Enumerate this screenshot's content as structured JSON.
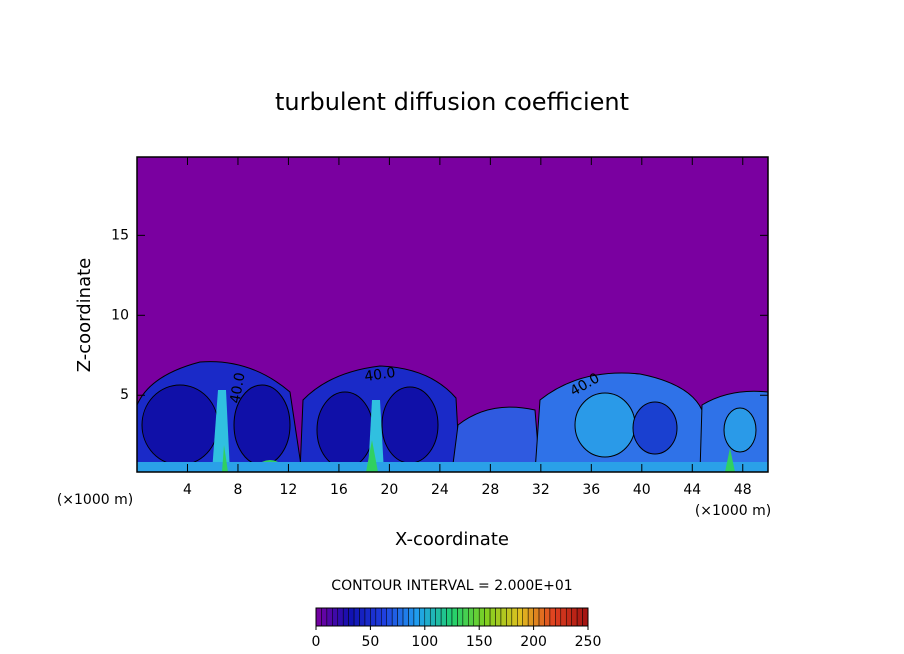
{
  "chart_data": {
    "type": "contour",
    "title": "turbulent diffusion coefficient",
    "x_label": "X-coordinate",
    "y_label": "Z-coordinate",
    "x_unit_labels": [
      "(×1000 m)",
      "(×1000 m)"
    ],
    "xlim": [
      0,
      50
    ],
    "ylim": [
      0.2,
      19.9
    ],
    "xticks": [
      4,
      8,
      12,
      16,
      20,
      24,
      28,
      32,
      36,
      40,
      44,
      48
    ],
    "yticks": [
      5,
      10,
      15
    ],
    "contour_labels": [
      "40.0",
      "40.0",
      "40.0"
    ],
    "contour_interval_text": "CONTOUR INTERVAL = 2.000E+01",
    "colorbar_lim": [
      0,
      250
    ],
    "colorbar_ticks": [
      0,
      50,
      100,
      150,
      200,
      250
    ],
    "colormap": [
      "#7a00a0",
      "#1010b0",
      "#2040e0",
      "#20a0f0",
      "#20d070",
      "#80d020",
      "#e0c020",
      "#e04020",
      "#a01010"
    ]
  }
}
